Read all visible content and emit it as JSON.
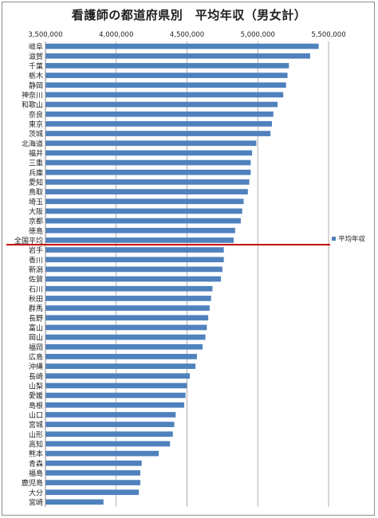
{
  "chart_data": {
    "type": "bar",
    "orientation": "horizontal",
    "title": "看護師の都道府県別　平均年収（男女計）",
    "xlabel": "",
    "ylabel": "",
    "xlim": [
      3500000,
      5500000
    ],
    "xticks": [
      "3,500,000",
      "4,000,000",
      "4,500,000",
      "5,000,000",
      "5,500,000"
    ],
    "xtick_values": [
      3500000,
      4000000,
      4500000,
      5000000,
      5500000
    ],
    "grid": true,
    "legend_position": "right",
    "categories": [
      "岐阜",
      "滋賀",
      "千葉",
      "栃木",
      "静岡",
      "神奈川",
      "和歌山",
      "奈良",
      "東京",
      "茨城",
      "北海道",
      "福井",
      "三重",
      "兵庫",
      "愛知",
      "鳥取",
      "埼玉",
      "大阪",
      "京都",
      "徳島",
      "全国平均",
      "岩手",
      "香川",
      "新潟",
      "佐賀",
      "石川",
      "秋田",
      "群馬",
      "長野",
      "富山",
      "岡山",
      "福岡",
      "広島",
      "沖縄",
      "長崎",
      "山梨",
      "愛媛",
      "島根",
      "山口",
      "宮城",
      "山形",
      "高知",
      "熊本",
      "青森",
      "福島",
      "鹿児島",
      "大分",
      "宮崎"
    ],
    "series": [
      {
        "name": "平均年収",
        "color": "#4f81bd",
        "values": [
          5430000,
          5370000,
          5220000,
          5210000,
          5200000,
          5180000,
          5140000,
          5110000,
          5100000,
          5090000,
          4990000,
          4960000,
          4950000,
          4950000,
          4940000,
          4930000,
          4900000,
          4890000,
          4880000,
          4840000,
          4830000,
          4760000,
          4760000,
          4750000,
          4740000,
          4680000,
          4670000,
          4660000,
          4650000,
          4640000,
          4630000,
          4610000,
          4570000,
          4560000,
          4520000,
          4500000,
          4490000,
          4480000,
          4420000,
          4410000,
          4400000,
          4380000,
          4300000,
          4180000,
          4170000,
          4170000,
          4160000,
          3910000
        ]
      }
    ],
    "average_line_color": "#c00000"
  }
}
